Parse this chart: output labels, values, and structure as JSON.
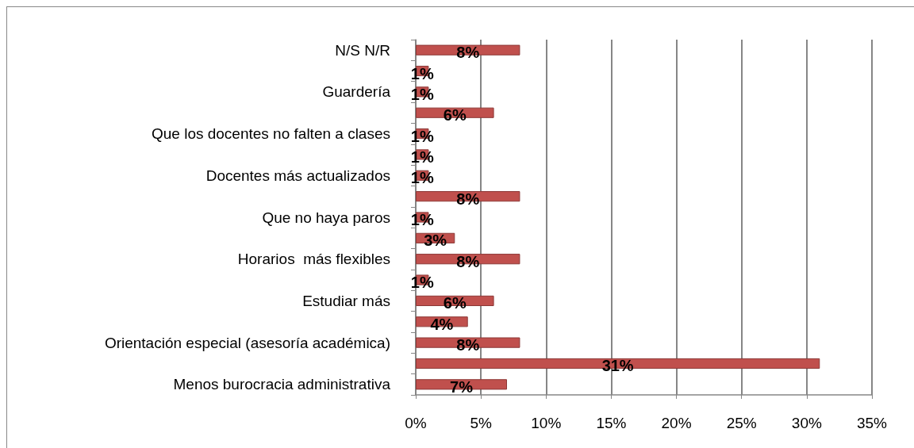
{
  "chart_data": {
    "type": "bar",
    "orientation": "horizontal",
    "categories": [
      "N/S N/R",
      null,
      "Guardería",
      null,
      "Que los docentes no falten a clases",
      null,
      "Docentes más actualizados",
      null,
      "Que no haya paros",
      null,
      "Horarios  más flexibles",
      null,
      "Estudiar más",
      null,
      "Orientación especial (asesoría académica)",
      null,
      "Menos burocracia administrativa"
    ],
    "values": [
      8,
      1,
      1,
      6,
      1,
      1,
      1,
      8,
      1,
      3,
      8,
      1,
      6,
      4,
      8,
      31,
      7
    ],
    "value_labels": [
      "8%",
      "1%",
      "1%",
      "6%",
      "1%",
      "1%",
      "1%",
      "8%",
      "1%",
      "3%",
      "8%",
      "1%",
      "6%",
      "4%",
      "8%",
      "31%",
      "7%"
    ],
    "color": "#c0504d",
    "xlim": [
      0,
      35
    ],
    "xticks": [
      {
        "value": 0,
        "label": "0%"
      },
      {
        "value": 5,
        "label": "5%"
      },
      {
        "value": 10,
        "label": "10%"
      },
      {
        "value": 15,
        "label": "15%"
      },
      {
        "value": 20,
        "label": "20%"
      },
      {
        "value": 25,
        "label": "25%"
      },
      {
        "value": 30,
        "label": "30%"
      },
      {
        "value": 35,
        "label": "35%"
      }
    ],
    "grid": "x"
  }
}
